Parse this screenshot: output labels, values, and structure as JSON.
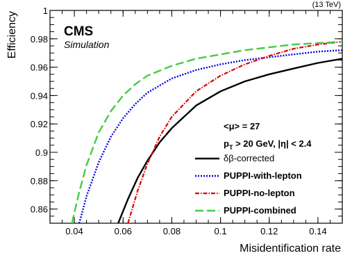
{
  "chart_data": {
    "type": "line",
    "energy_label": "(13 TeV)",
    "experiment": "CMS",
    "experiment_sub": "Simulation",
    "xlabel": "Misidentification rate",
    "ylabel": "Efficiency",
    "xlim": [
      0.03,
      0.15
    ],
    "ylim": [
      0.85,
      1.0
    ],
    "x_ticks": [
      0.04,
      0.06,
      0.08,
      0.1,
      0.12,
      0.14
    ],
    "x_tick_labels": [
      "0.04",
      "0.06",
      "0.08",
      "0.1",
      "0.12",
      "0.14"
    ],
    "y_ticks": [
      0.86,
      0.88,
      0.9,
      0.92,
      0.94,
      0.96,
      0.98,
      1.0
    ],
    "y_tick_labels": [
      "0.86",
      "0.88",
      "0.9",
      "0.92",
      "0.94",
      "0.96",
      "0.98",
      "1"
    ],
    "annotations": {
      "pileup": "<μ> = 27",
      "selection": "p",
      "selection_sub": "T",
      "selection_rest": " > 20 GeV, |η| < 2.4"
    },
    "legend_position": "bottom-right",
    "series": [
      {
        "name": "δβ-corrected",
        "color": "#000000",
        "dash": "solid",
        "x": [
          0.058,
          0.062,
          0.066,
          0.07,
          0.075,
          0.08,
          0.09,
          0.1,
          0.11,
          0.12,
          0.13,
          0.14,
          0.15
        ],
        "y": [
          0.85,
          0.867,
          0.882,
          0.894,
          0.907,
          0.917,
          0.933,
          0.943,
          0.95,
          0.955,
          0.959,
          0.963,
          0.966
        ]
      },
      {
        "name": "PUPPI-with-lepton",
        "color": "#0000dd",
        "dash": "dotted",
        "x": [
          0.042,
          0.045,
          0.05,
          0.055,
          0.06,
          0.065,
          0.07,
          0.08,
          0.09,
          0.1,
          0.11,
          0.12,
          0.13,
          0.14,
          0.15
        ],
        "y": [
          0.85,
          0.869,
          0.893,
          0.911,
          0.924,
          0.934,
          0.942,
          0.952,
          0.958,
          0.962,
          0.965,
          0.967,
          0.969,
          0.971,
          0.972
        ]
      },
      {
        "name": "PUPPI-no-lepton",
        "color": "#dd0000",
        "dash": "dashdot",
        "x": [
          0.062,
          0.066,
          0.07,
          0.075,
          0.08,
          0.09,
          0.1,
          0.11,
          0.12,
          0.13,
          0.14,
          0.15
        ],
        "y": [
          0.85,
          0.873,
          0.892,
          0.911,
          0.925,
          0.943,
          0.954,
          0.962,
          0.968,
          0.973,
          0.976,
          0.978
        ]
      },
      {
        "name": "PUPPI-combined",
        "color": "#44cc44",
        "dash": "longdash",
        "x": [
          0.039,
          0.042,
          0.045,
          0.05,
          0.055,
          0.06,
          0.065,
          0.07,
          0.08,
          0.09,
          0.1,
          0.11,
          0.12,
          0.13,
          0.14,
          0.15
        ],
        "y": [
          0.85,
          0.872,
          0.891,
          0.914,
          0.929,
          0.94,
          0.948,
          0.954,
          0.961,
          0.966,
          0.969,
          0.972,
          0.974,
          0.976,
          0.977,
          0.978
        ]
      }
    ]
  }
}
